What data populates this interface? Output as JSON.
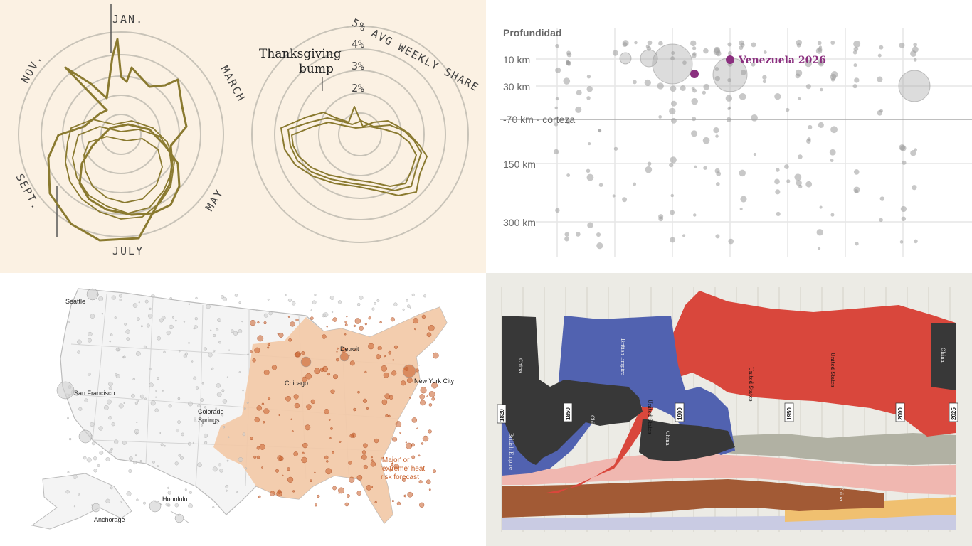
{
  "colors": {
    "panel_tl_bg": "#fbf1e3",
    "radar_line": "#8a7a30",
    "radar_ring": "#c8c3b8",
    "panel_br_bg": "#ecebe5",
    "depth_highlight": "#8b2f7f",
    "depth_dot": "#9a9a9a",
    "heat_fill": "#f3c9a6",
    "heat_dot": "#c85f2a"
  },
  "radar": {
    "months": [
      "JAN.",
      "MARCH",
      "MAY",
      "JULY",
      "SEPT.",
      "NOV."
    ],
    "scale_labels": [
      "5% AVG WEEKLY SHARE",
      "4%",
      "3%",
      "2%"
    ],
    "annotation_line1": "Thanksgiving",
    "annotation_line2": "bump"
  },
  "depth": {
    "title": "Profundidad",
    "levels": [
      "10 km",
      "30 km",
      "-70 km · corteza",
      "150 km",
      "300 km"
    ],
    "highlight": "Venezuela 2026"
  },
  "heatmap": {
    "cities": [
      "Seattle",
      "San Francisco",
      "Colorado Springs",
      "Chicago",
      "Detroit",
      "New York City",
      "Anchorage",
      "Honolulu"
    ],
    "legend_line1": "'Major' or",
    "legend_line2": "'extreme' heat",
    "legend_line3": "risk forecast"
  },
  "stream": {
    "years": [
      "1820",
      "1850",
      "1900",
      "1950",
      "2000",
      "2025"
    ],
    "labels": [
      "China",
      "British Empire",
      "China",
      "United States",
      "United States",
      "British Empire",
      "China",
      "United States",
      "China",
      "China"
    ]
  }
}
